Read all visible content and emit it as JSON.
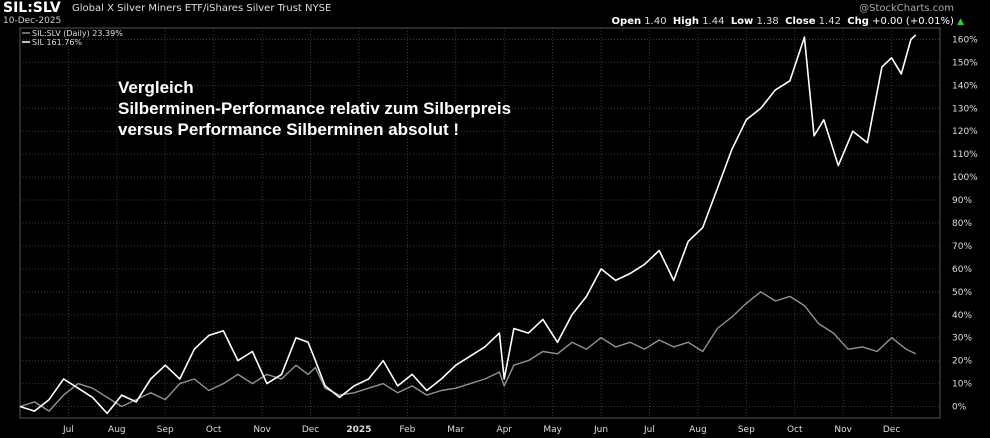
{
  "header": {
    "ticker": "SIL:SLV",
    "subtitle": "Global X Silver Miners ETF/iShares Silver Trust  NYSE",
    "date": "10-Dec-2025",
    "open_label": "Open",
    "open": "1.40",
    "high_label": "High",
    "high": "1.44",
    "low_label": "Low",
    "low": "1.38",
    "close_label": "Close",
    "close": "1.42",
    "chg_label": "Chg",
    "chg": "+0.00 (+0.01%)",
    "logo": "@StockCharts.com"
  },
  "annotation": {
    "line1": "Vergleich",
    "line2": "Silberminen-Performance relativ zum Silberpreis",
    "line3": "versus Performance Silberminen absolut !"
  },
  "colors": {
    "background": "#000000",
    "grid": "#3a3a3a",
    "sil": "#ffffff",
    "ratio": "#8a9496"
  },
  "chart_data": {
    "type": "line",
    "xlim": [
      0,
      19
    ],
    "ylim": [
      -5,
      165
    ],
    "x_tick_labels": [
      {
        "x": 1,
        "label": "Jul"
      },
      {
        "x": 2,
        "label": "Aug"
      },
      {
        "x": 3,
        "label": "Sep"
      },
      {
        "x": 4,
        "label": "Oct"
      },
      {
        "x": 5,
        "label": "Nov"
      },
      {
        "x": 6,
        "label": "Dec"
      },
      {
        "x": 7,
        "label": "2025"
      },
      {
        "x": 8,
        "label": "Feb"
      },
      {
        "x": 9,
        "label": "Mar"
      },
      {
        "x": 10,
        "label": "Apr"
      },
      {
        "x": 11,
        "label": "May"
      },
      {
        "x": 12,
        "label": "Jun"
      },
      {
        "x": 13,
        "label": "Jul"
      },
      {
        "x": 14,
        "label": "Aug"
      },
      {
        "x": 15,
        "label": "Sep"
      },
      {
        "x": 16,
        "label": "Oct"
      },
      {
        "x": 17,
        "label": "Nov"
      },
      {
        "x": 18,
        "label": "Dec"
      }
    ],
    "y_ticks": [
      0,
      10,
      20,
      30,
      40,
      50,
      60,
      70,
      80,
      90,
      100,
      110,
      120,
      130,
      140,
      150,
      160
    ],
    "y_tick_labels": [
      "0%",
      "10%",
      "20%",
      "30%",
      "40%",
      "50%",
      "60%",
      "70%",
      "80%",
      "90%",
      "100%",
      "110%",
      "120%",
      "130%",
      "140%",
      "150%",
      "160%"
    ],
    "series": [
      {
        "name": "SIL:SLV (Daily) 23.39%",
        "color": "#8a9496",
        "points": [
          [
            0,
            0
          ],
          [
            0.3,
            2
          ],
          [
            0.6,
            -2
          ],
          [
            0.9,
            5
          ],
          [
            1.2,
            10
          ],
          [
            1.5,
            8
          ],
          [
            1.8,
            4
          ],
          [
            2.1,
            0
          ],
          [
            2.4,
            3
          ],
          [
            2.7,
            6
          ],
          [
            3.0,
            3
          ],
          [
            3.3,
            10
          ],
          [
            3.6,
            12
          ],
          [
            3.9,
            7
          ],
          [
            4.2,
            10
          ],
          [
            4.5,
            14
          ],
          [
            4.8,
            10
          ],
          [
            5.1,
            14
          ],
          [
            5.4,
            12
          ],
          [
            5.7,
            18
          ],
          [
            5.95,
            14
          ],
          [
            6.1,
            17
          ],
          [
            6.3,
            8
          ],
          [
            6.6,
            5
          ],
          [
            6.9,
            6
          ],
          [
            7.2,
            8
          ],
          [
            7.5,
            10
          ],
          [
            7.8,
            6
          ],
          [
            8.1,
            9
          ],
          [
            8.4,
            5
          ],
          [
            8.7,
            7
          ],
          [
            9.0,
            8
          ],
          [
            9.3,
            10
          ],
          [
            9.6,
            12
          ],
          [
            9.9,
            15
          ],
          [
            10.0,
            9
          ],
          [
            10.2,
            18
          ],
          [
            10.5,
            20
          ],
          [
            10.8,
            24
          ],
          [
            11.1,
            23
          ],
          [
            11.4,
            28
          ],
          [
            11.7,
            25
          ],
          [
            12.0,
            30
          ],
          [
            12.3,
            26
          ],
          [
            12.6,
            28
          ],
          [
            12.9,
            25
          ],
          [
            13.2,
            29
          ],
          [
            13.5,
            26
          ],
          [
            13.8,
            28
          ],
          [
            14.1,
            24
          ],
          [
            14.4,
            34
          ],
          [
            14.7,
            39
          ],
          [
            15.0,
            45
          ],
          [
            15.3,
            50
          ],
          [
            15.6,
            46
          ],
          [
            15.9,
            48
          ],
          [
            16.2,
            44
          ],
          [
            16.5,
            36
          ],
          [
            16.8,
            32
          ],
          [
            17.1,
            25
          ],
          [
            17.4,
            26
          ],
          [
            17.7,
            24
          ],
          [
            18.0,
            30
          ],
          [
            18.3,
            25
          ],
          [
            18.5,
            23
          ]
        ]
      },
      {
        "name": "SIL 161.76%",
        "color": "#ffffff",
        "points": [
          [
            0,
            0
          ],
          [
            0.3,
            -2
          ],
          [
            0.6,
            3
          ],
          [
            0.9,
            12
          ],
          [
            1.2,
            8
          ],
          [
            1.5,
            4
          ],
          [
            1.8,
            -3
          ],
          [
            2.1,
            5
          ],
          [
            2.4,
            2
          ],
          [
            2.7,
            12
          ],
          [
            3.0,
            18
          ],
          [
            3.3,
            12
          ],
          [
            3.6,
            25
          ],
          [
            3.9,
            31
          ],
          [
            4.2,
            33
          ],
          [
            4.5,
            20
          ],
          [
            4.8,
            24
          ],
          [
            5.1,
            10
          ],
          [
            5.4,
            14
          ],
          [
            5.7,
            30
          ],
          [
            5.95,
            28
          ],
          [
            6.1,
            20
          ],
          [
            6.3,
            9
          ],
          [
            6.6,
            4
          ],
          [
            6.9,
            9
          ],
          [
            7.2,
            12
          ],
          [
            7.5,
            20
          ],
          [
            7.8,
            9
          ],
          [
            8.1,
            14
          ],
          [
            8.4,
            7
          ],
          [
            8.7,
            12
          ],
          [
            9.0,
            18
          ],
          [
            9.3,
            22
          ],
          [
            9.6,
            26
          ],
          [
            9.9,
            32
          ],
          [
            10.0,
            12
          ],
          [
            10.2,
            34
          ],
          [
            10.5,
            32
          ],
          [
            10.8,
            38
          ],
          [
            11.1,
            28
          ],
          [
            11.4,
            40
          ],
          [
            11.7,
            48
          ],
          [
            12.0,
            60
          ],
          [
            12.3,
            55
          ],
          [
            12.6,
            58
          ],
          [
            12.9,
            62
          ],
          [
            13.2,
            68
          ],
          [
            13.5,
            55
          ],
          [
            13.8,
            72
          ],
          [
            14.1,
            78
          ],
          [
            14.4,
            95
          ],
          [
            14.7,
            112
          ],
          [
            15.0,
            125
          ],
          [
            15.3,
            130
          ],
          [
            15.6,
            138
          ],
          [
            15.9,
            142
          ],
          [
            16.2,
            161
          ],
          [
            16.4,
            118
          ],
          [
            16.6,
            125
          ],
          [
            16.9,
            105
          ],
          [
            17.2,
            120
          ],
          [
            17.5,
            115
          ],
          [
            17.8,
            148
          ],
          [
            18.0,
            152
          ],
          [
            18.2,
            145
          ],
          [
            18.4,
            160
          ],
          [
            18.5,
            162
          ]
        ]
      }
    ]
  }
}
